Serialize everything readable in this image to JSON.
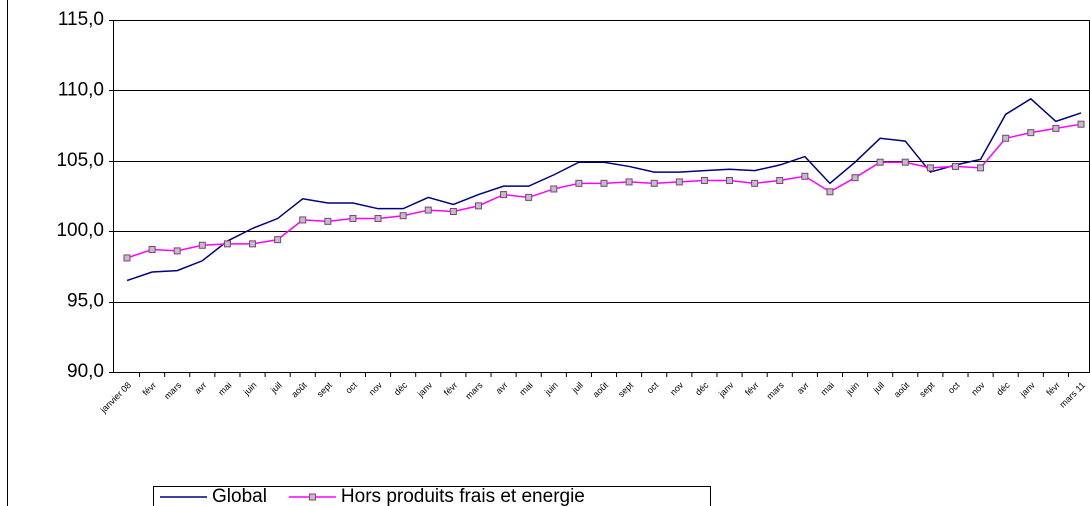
{
  "chart_data": {
    "type": "line",
    "categories": [
      "janvier 08",
      "févr",
      "mars",
      "avr",
      "mai",
      "juin",
      "juil",
      "août",
      "sept",
      "oct",
      "nov",
      "déc",
      "janv",
      "févr",
      "mars",
      "avr",
      "mai",
      "juin",
      "juil",
      "août",
      "sept",
      "oct",
      "nov",
      "déc",
      "janv",
      "févr",
      "mars",
      "avr",
      "mai",
      "juin",
      "juil",
      "août",
      "sept",
      "oct",
      "nov",
      "déc",
      "janv",
      "févr",
      "mars 11"
    ],
    "series": [
      {
        "name": "Global",
        "color": "#000080",
        "marker": false,
        "values": [
          96.5,
          97.1,
          97.2,
          97.9,
          99.3,
          100.2,
          100.9,
          102.3,
          102.0,
          102.0,
          101.6,
          101.6,
          102.4,
          101.9,
          102.6,
          103.2,
          103.2,
          104.0,
          104.9,
          104.9,
          104.6,
          104.2,
          104.2,
          104.3,
          104.4,
          104.3,
          104.7,
          105.3,
          103.4,
          104.9,
          106.6,
          106.4,
          104.2,
          104.7,
          105.1,
          108.3,
          109.4,
          107.8,
          108.4
        ]
      },
      {
        "name": "Hors produits frais et energie",
        "color": "#ff00ff",
        "marker": true,
        "values": [
          98.1,
          98.7,
          98.6,
          99.0,
          99.1,
          99.1,
          99.4,
          100.8,
          100.7,
          100.9,
          100.9,
          101.1,
          101.5,
          101.4,
          101.8,
          102.6,
          102.4,
          103.0,
          103.4,
          103.4,
          103.5,
          103.4,
          103.5,
          103.6,
          103.6,
          103.4,
          103.6,
          103.9,
          102.8,
          103.8,
          104.9,
          104.9,
          104.5,
          104.6,
          104.5,
          106.6,
          107.0,
          107.3,
          107.6
        ]
      }
    ],
    "ylim": [
      90,
      115
    ],
    "yticks": [
      {
        "value": 90,
        "label": "90,0"
      },
      {
        "value": 95,
        "label": "95,0"
      },
      {
        "value": 100,
        "label": "100,0"
      },
      {
        "value": 105,
        "label": "105,0"
      },
      {
        "value": 110,
        "label": "110,0"
      },
      {
        "value": 115,
        "label": "115,0"
      }
    ],
    "grid": true,
    "legend": "bottom"
  }
}
